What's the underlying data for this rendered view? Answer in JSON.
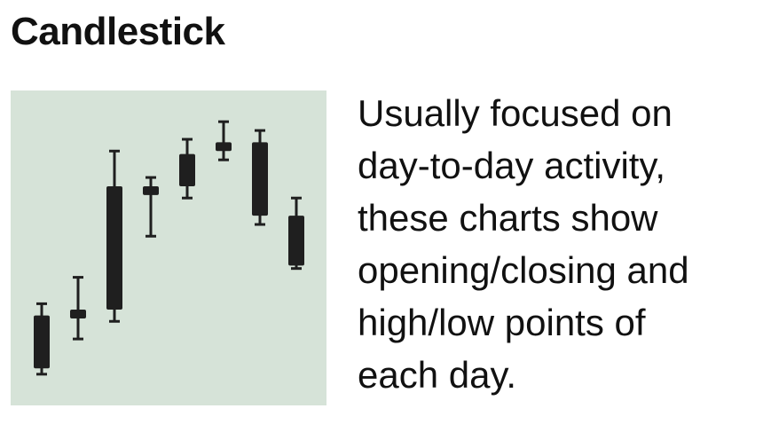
{
  "title": "Candlestick",
  "description_lines": [
    "Usually focused on",
    "day-to-day activity,",
    "these charts show",
    "opening/closing and",
    "high/low points of",
    "each day."
  ],
  "colors": {
    "panel_background": "#d6e3d8",
    "candle": "#1f1f1f",
    "text": "#111111"
  },
  "chart_data": {
    "type": "candlestick",
    "title": "",
    "xlabel": "",
    "ylabel": "",
    "grid": false,
    "ylim": [
      0,
      100
    ],
    "candles": [
      {
        "open": 9,
        "close": 27,
        "high": 31,
        "low": 7
      },
      {
        "open": 26,
        "close": 29,
        "high": 40,
        "low": 19
      },
      {
        "open": 29,
        "close": 71,
        "high": 83,
        "low": 25
      },
      {
        "open": 68,
        "close": 71,
        "high": 74,
        "low": 54
      },
      {
        "open": 71,
        "close": 82,
        "high": 87,
        "low": 67
      },
      {
        "open": 83,
        "close": 86,
        "high": 93,
        "low": 80
      },
      {
        "open": 86,
        "close": 61,
        "high": 90,
        "low": 58
      },
      {
        "open": 61,
        "close": 44,
        "high": 67,
        "low": 43
      }
    ]
  }
}
